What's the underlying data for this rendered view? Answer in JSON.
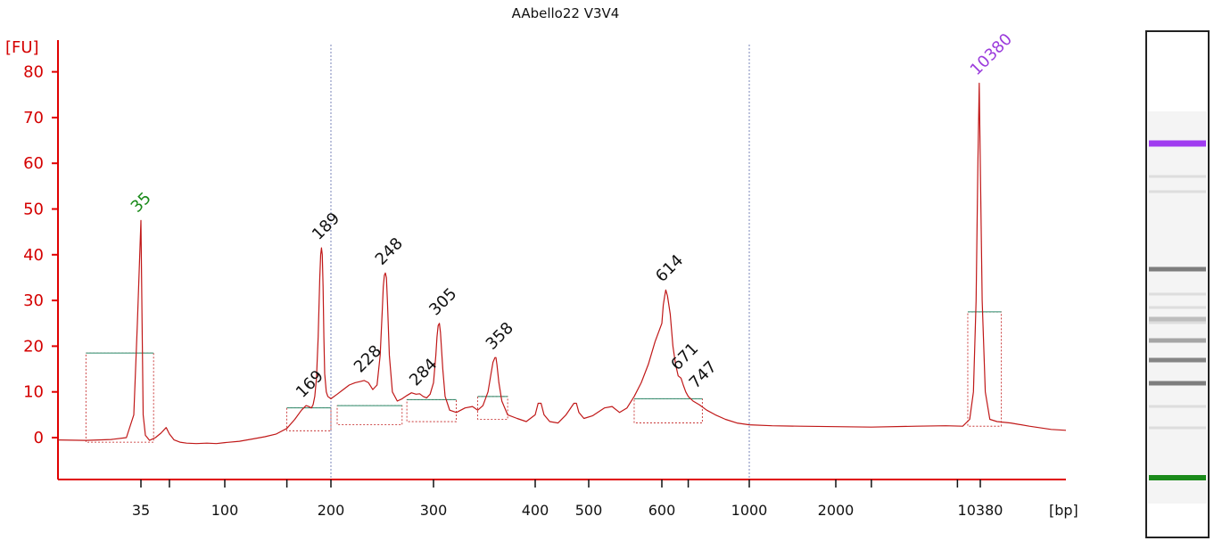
{
  "chart_data": {
    "type": "line",
    "title": "AAbello22 V3V4",
    "ylabel": "[FU]",
    "xlabel": "[bp]",
    "ylim": [
      -9,
      85
    ],
    "y_ticks": [
      0,
      10,
      20,
      30,
      40,
      50,
      60,
      70,
      80
    ],
    "x_tick_labels": [
      "35",
      "100",
      "200",
      "300",
      "400",
      "500",
      "600",
      "1000",
      "2000",
      "10380"
    ],
    "x_tick_values": [
      35,
      100,
      200,
      300,
      400,
      500,
      600,
      1000,
      2000,
      10380
    ],
    "series": [
      {
        "x": [
          25,
          28,
          31,
          33,
          34,
          34.5,
          35,
          35.5,
          36,
          37,
          39,
          42,
          45,
          48,
          50,
          53,
          57,
          62,
          70,
          80,
          90,
          100,
          110,
          120,
          130,
          140,
          150,
          158,
          165,
          170,
          173,
          176,
          178,
          180,
          182,
          184,
          186,
          187,
          188,
          189,
          190,
          191,
          192,
          194,
          196,
          200,
          205,
          210,
          215,
          220,
          225,
          228,
          232,
          236,
          240,
          243,
          245,
          246,
          247,
          248,
          249,
          250,
          252,
          255,
          260,
          265,
          270,
          275,
          280,
          284,
          288,
          292,
          296,
          300,
          302,
          303,
          304,
          305,
          306,
          308,
          310,
          314,
          320,
          328,
          335,
          340,
          345,
          350,
          353,
          355,
          357,
          358,
          359,
          361,
          364,
          370,
          380,
          390,
          400,
          405,
          410,
          415,
          425,
          440,
          455,
          470,
          475,
          480,
          490,
          505,
          520,
          530,
          540,
          550,
          560,
          570,
          580,
          590,
          600,
          605,
          610,
          614,
          620,
          630,
          640,
          650,
          660,
          671,
          680,
          690,
          700,
          720,
          747,
          780,
          820,
          870,
          930,
          1000,
          1200,
          1500,
          2000,
          3000,
          5000,
          7000,
          8500,
          9200,
          9600,
          9900,
          10100,
          10250,
          10380,
          10500,
          10700,
          11000,
          11500,
          12500,
          14000,
          16000,
          17500
        ],
        "y": [
          -0.5,
          -0.6,
          -0.4,
          0,
          5,
          25,
          47.5,
          25,
          5,
          0.5,
          -0.6,
          0,
          1,
          2.2,
          0.8,
          -0.5,
          -1,
          -1.2,
          -1.3,
          -1.2,
          -1.3,
          -1.1,
          -0.8,
          -0.3,
          0.2,
          0.8,
          2,
          4,
          6,
          7,
          6.8,
          6.5,
          7.2,
          9,
          13,
          22,
          35,
          40,
          41.5,
          40,
          33,
          22,
          14,
          10,
          9,
          8.5,
          9.5,
          10.5,
          11.5,
          12,
          12.3,
          12.5,
          12,
          10.5,
          11.5,
          18,
          28,
          33,
          35.5,
          36,
          35,
          30,
          18,
          10,
          8,
          8.5,
          9.2,
          9.8,
          9.5,
          9.6,
          9,
          8.7,
          9.5,
          12,
          18,
          22,
          24.5,
          25,
          23,
          15,
          9,
          6,
          5.5,
          6.5,
          6.8,
          6,
          7,
          10,
          14,
          16.5,
          17.5,
          17.5,
          16,
          12,
          8,
          5,
          4.2,
          3.5,
          5,
          7.5,
          7.5,
          5,
          3.5,
          3.2,
          5,
          7.5,
          7.5,
          5.5,
          4.2,
          4.8,
          6.5,
          6.8,
          5.5,
          6.5,
          9,
          12,
          16,
          21,
          25,
          29,
          31,
          32.3,
          31,
          27,
          20,
          16,
          13.5,
          13,
          11.5,
          10,
          9,
          8,
          7.2,
          6,
          5,
          4,
          3.2,
          2.8,
          2.6,
          2.5,
          2.4,
          2.3,
          2.5,
          2.6,
          2.5,
          4,
          10,
          30,
          60,
          77.5,
          60,
          30,
          10,
          4,
          3.5,
          3.2,
          2.5,
          1.8,
          1.6
        ]
      }
    ],
    "peaks": [
      {
        "label": "35",
        "x": 35,
        "y": 47.5,
        "color": "#1a8a1a"
      },
      {
        "label": "169",
        "x": 170,
        "y": 7,
        "color": "#111111"
      },
      {
        "label": "189",
        "x": 189,
        "y": 41.5,
        "color": "#111111"
      },
      {
        "label": "228",
        "x": 228,
        "y": 12.5,
        "color": "#111111"
      },
      {
        "label": "248",
        "x": 248,
        "y": 36,
        "color": "#111111"
      },
      {
        "label": "284",
        "x": 284,
        "y": 9.6,
        "color": "#111111"
      },
      {
        "label": "305",
        "x": 305,
        "y": 25,
        "color": "#111111"
      },
      {
        "label": "358",
        "x": 358,
        "y": 17.5,
        "color": "#111111"
      },
      {
        "label": "614",
        "x": 614,
        "y": 32.3,
        "color": "#111111"
      },
      {
        "label": "671",
        "x": 671,
        "y": 13,
        "color": "#111111"
      },
      {
        "label": "747",
        "x": 747,
        "y": 9,
        "color": "#111111"
      },
      {
        "label": "10380",
        "x": 10380,
        "y": 77.5,
        "color": "#9b3cdc"
      }
    ],
    "lower_marker": 35,
    "upper_marker": 10380,
    "grid": false,
    "colors": {
      "trace": "#c01818",
      "axis": "#e00000",
      "tick_label_y": "#d40000",
      "lower_marker": "#1a8a1a",
      "upper_marker": "#9b3cdc",
      "region_bar": "#2a8a6a",
      "gel_band": "#555555"
    }
  },
  "gel_lane": {
    "lower_marker_color": "#1a8a1a",
    "upper_marker_color": "#a03cf0",
    "bands": [
      {
        "bp": 35,
        "intensity": 1.0
      },
      {
        "bp": 189,
        "intensity": 0.75
      },
      {
        "bp": 248,
        "intensity": 0.7
      },
      {
        "bp": 305,
        "intensity": 0.5
      },
      {
        "bp": 358,
        "intensity": 0.35
      },
      {
        "bp": 614,
        "intensity": 0.75
      },
      {
        "bp": 10380,
        "intensity": 1.0
      }
    ]
  }
}
